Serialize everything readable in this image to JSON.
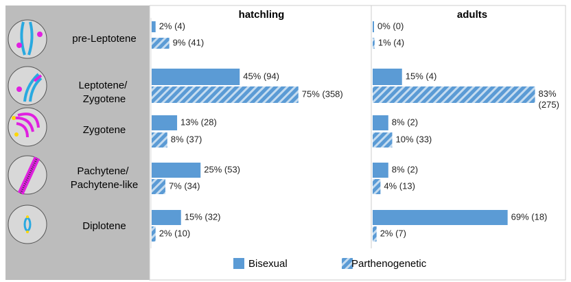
{
  "chart_data": {
    "type": "bar",
    "orientation": "horizontal",
    "categories": [
      "pre-Leptotene",
      "Leptotene/ Zygotene",
      "Zygotene",
      "Pachytene/ Pachytene-like",
      "Diplotene"
    ],
    "series": [
      {
        "name": "Bisexual",
        "color": "#5b9bd5",
        "pattern": "solid"
      },
      {
        "name": "Parthenogenetic",
        "color": "#5b9bd5",
        "pattern": "hatch"
      }
    ],
    "panels": [
      {
        "title": "hatchling",
        "series": [
          {
            "values": [
              2,
              45,
              13,
              25,
              15
            ],
            "value_labels": [
              "2% (4)",
              "45% (94)",
              "13% (28)",
              "25% (53)",
              "15% (32)"
            ]
          },
          {
            "values": [
              9,
              75,
              8,
              7,
              2
            ],
            "value_labels": [
              "9% (41)",
              "75% (358)",
              "8% (37)",
              "7% (34)",
              "2% (10)"
            ]
          }
        ]
      },
      {
        "title": "adults",
        "series": [
          {
            "values": [
              0,
              15,
              8,
              8,
              69
            ],
            "value_labels": [
              "0% (0)",
              "15% (4)",
              "8% (2)",
              "8% (2)",
              "69% (18)"
            ]
          },
          {
            "values": [
              1,
              83,
              10,
              4,
              2
            ],
            "value_labels": [
              "1% (4)",
              "83% (275)",
              "10% (33)",
              "4% (13)",
              "2% (7)"
            ]
          }
        ]
      }
    ]
  }
}
